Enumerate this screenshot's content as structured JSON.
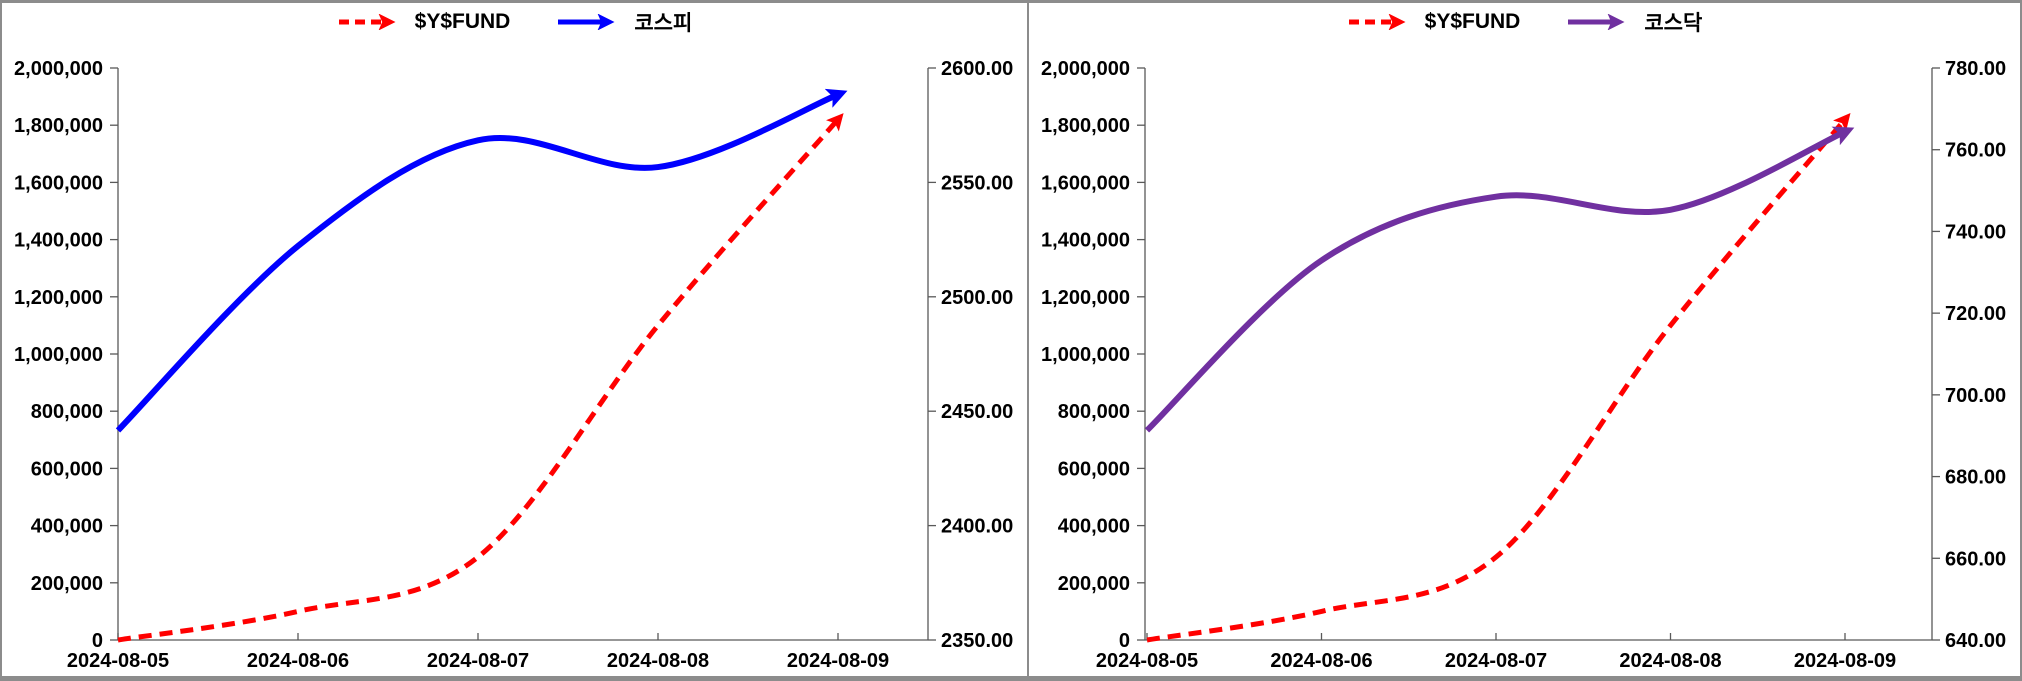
{
  "frame": {
    "border_color": "#8c8c8c",
    "divider_color": "#8c8c8c",
    "background": "#ffffff",
    "axis_color": "#595959"
  },
  "chart_data": [
    {
      "type": "line",
      "title": "",
      "x": [
        "2024-08-05",
        "2024-08-06",
        "2024-08-07",
        "2024-08-08",
        "2024-08-09"
      ],
      "series": [
        {
          "name": "$Y$FUND",
          "axis": "left",
          "color": "#ff0000",
          "style": "dashed",
          "arrow_end": true,
          "values": [
            0,
            100000,
            290000,
            1100000,
            1820000
          ]
        },
        {
          "name": "코스피",
          "axis": "right",
          "color": "#0000ff",
          "style": "solid",
          "arrow_end": true,
          "values": [
            2441.6,
            2522.2,
            2568.4,
            2556.7,
            2588.4
          ]
        }
      ],
      "left_axis": {
        "min": 0,
        "max": 2000000,
        "step": 200000,
        "tick_labels": [
          "2,000,000",
          "1,800,000",
          "1,600,000",
          "1,400,000",
          "1,200,000",
          "1,000,000",
          "800,000",
          "600,000",
          "400,000",
          "200,000",
          "0"
        ]
      },
      "right_axis": {
        "min": 2350,
        "max": 2600,
        "step": 50,
        "tick_labels": [
          "2600.00",
          "2550.00",
          "2500.00",
          "2450.00",
          "2400.00",
          "2350.00"
        ]
      },
      "legend_position": "top",
      "grid": false
    },
    {
      "type": "line",
      "title": "",
      "x": [
        "2024-08-05",
        "2024-08-06",
        "2024-08-07",
        "2024-08-08",
        "2024-08-09"
      ],
      "series": [
        {
          "name": "$Y$FUND",
          "axis": "left",
          "color": "#ff0000",
          "style": "dashed",
          "arrow_end": true,
          "values": [
            0,
            100000,
            290000,
            1100000,
            1820000
          ]
        },
        {
          "name": "코스닥",
          "axis": "right",
          "color": "#7030a0",
          "style": "solid",
          "arrow_end": true,
          "values": [
            691.3,
            732.9,
            748.5,
            745.3,
            764.4
          ]
        }
      ],
      "left_axis": {
        "min": 0,
        "max": 2000000,
        "step": 200000,
        "tick_labels": [
          "2,000,000",
          "1,800,000",
          "1,600,000",
          "1,400,000",
          "1,200,000",
          "1,000,000",
          "800,000",
          "600,000",
          "400,000",
          "200,000",
          "0"
        ]
      },
      "right_axis": {
        "min": 640,
        "max": 780,
        "step": 20,
        "tick_labels": [
          "780.00",
          "760.00",
          "740.00",
          "720.00",
          "700.00",
          "680.00",
          "660.00",
          "640.00"
        ]
      },
      "legend_position": "top",
      "grid": false
    }
  ]
}
